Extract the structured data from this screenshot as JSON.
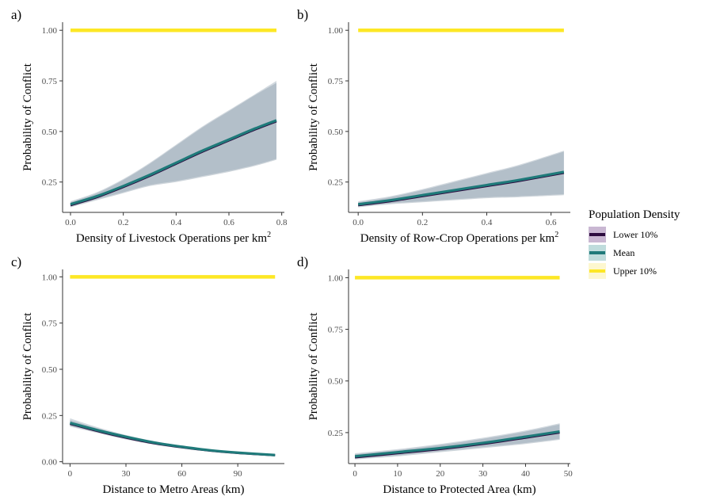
{
  "chart_data": [
    {
      "panel": "a)",
      "type": "line",
      "xlabel": "Density of Livestock Operations per km",
      "xlabel_sup": "2",
      "ylabel": "Probability of Conflict",
      "xlim": [
        -0.03,
        0.81
      ],
      "ylim": [
        0.1,
        1.04
      ],
      "xticks": [
        0,
        0.2,
        0.4,
        0.6,
        0.8
      ],
      "xtick_labels": [
        "0.0",
        "0.2",
        "0.4",
        "0.6",
        "0.8"
      ],
      "yticks": [
        0.25,
        0.5,
        0.75,
        1.0
      ],
      "ytick_labels": [
        "0.25",
        "0.50",
        "0.75",
        "1.00"
      ],
      "x": [
        0.0,
        0.1,
        0.2,
        0.3,
        0.4,
        0.5,
        0.6,
        0.7,
        0.78
      ],
      "series": [
        {
          "name": "Lower 10%",
          "values": [
            0.135,
            0.175,
            0.225,
            0.28,
            0.34,
            0.4,
            0.455,
            0.51,
            0.55
          ],
          "lower": [
            0.125,
            0.16,
            0.195,
            0.23,
            0.25,
            0.275,
            0.3,
            0.33,
            0.36
          ],
          "upper": [
            0.15,
            0.195,
            0.26,
            0.34,
            0.43,
            0.52,
            0.6,
            0.68,
            0.74
          ]
        },
        {
          "name": "Mean",
          "values": [
            0.14,
            0.18,
            0.23,
            0.285,
            0.345,
            0.405,
            0.46,
            0.515,
            0.555
          ],
          "lower": [
            0.13,
            0.165,
            0.2,
            0.235,
            0.255,
            0.28,
            0.305,
            0.335,
            0.365
          ],
          "upper": [
            0.155,
            0.2,
            0.265,
            0.345,
            0.435,
            0.525,
            0.605,
            0.685,
            0.75
          ]
        },
        {
          "name": "Upper 10%",
          "values": [
            1.0,
            1.0,
            1.0,
            1.0,
            1.0,
            1.0,
            1.0,
            1.0,
            1.0
          ],
          "lower": [
            0.999,
            0.999,
            0.999,
            0.999,
            0.999,
            0.999,
            0.999,
            0.999,
            0.999
          ],
          "upper": [
            1.0,
            1.0,
            1.0,
            1.0,
            1.0,
            1.0,
            1.0,
            1.0,
            1.0
          ]
        }
      ]
    },
    {
      "panel": "b)",
      "type": "line",
      "xlabel": "Density of Row-Crop Operations per km",
      "xlabel_sup": "2",
      "ylabel": "Probability of Conflict",
      "xlim": [
        -0.03,
        0.66
      ],
      "ylim": [
        0.1,
        1.04
      ],
      "xticks": [
        0,
        0.2,
        0.4,
        0.6
      ],
      "xtick_labels": [
        "0.0",
        "0.2",
        "0.4",
        "0.6"
      ],
      "yticks": [
        0.25,
        0.5,
        0.75,
        1.0
      ],
      "ytick_labels": [
        "0.25",
        "0.50",
        "0.75",
        "1.00"
      ],
      "x": [
        0.0,
        0.1,
        0.2,
        0.3,
        0.4,
        0.5,
        0.64
      ],
      "series": [
        {
          "name": "Lower 10%",
          "values": [
            0.135,
            0.155,
            0.18,
            0.205,
            0.23,
            0.255,
            0.295
          ],
          "lower": [
            0.125,
            0.14,
            0.15,
            0.16,
            0.17,
            0.175,
            0.185
          ],
          "upper": [
            0.15,
            0.175,
            0.21,
            0.25,
            0.29,
            0.33,
            0.4
          ]
        },
        {
          "name": "Mean",
          "values": [
            0.14,
            0.16,
            0.185,
            0.21,
            0.235,
            0.26,
            0.3
          ],
          "lower": [
            0.13,
            0.145,
            0.155,
            0.165,
            0.175,
            0.18,
            0.19
          ],
          "upper": [
            0.155,
            0.18,
            0.215,
            0.255,
            0.295,
            0.335,
            0.405
          ]
        },
        {
          "name": "Upper 10%",
          "values": [
            1.0,
            1.0,
            1.0,
            1.0,
            1.0,
            1.0,
            1.0
          ],
          "lower": [
            0.999,
            0.999,
            0.999,
            0.999,
            0.999,
            0.999,
            0.999
          ],
          "upper": [
            1.0,
            1.0,
            1.0,
            1.0,
            1.0,
            1.0,
            1.0
          ]
        }
      ]
    },
    {
      "panel": "c)",
      "type": "line",
      "xlabel": "Distance to Metro Areas (km)",
      "ylabel": "Probability of Conflict",
      "xlim": [
        -4,
        115
      ],
      "ylim": [
        -0.01,
        1.04
      ],
      "xticks": [
        0,
        30,
        60,
        90
      ],
      "xtick_labels": [
        "0",
        "30",
        "60",
        "90"
      ],
      "yticks": [
        0,
        0.25,
        0.5,
        0.75,
        1.0
      ],
      "ytick_labels": [
        "0.00",
        "0.25",
        "0.50",
        "0.75",
        "1.00"
      ],
      "x": [
        0,
        15,
        30,
        45,
        60,
        75,
        90,
        110
      ],
      "series": [
        {
          "name": "Lower 10%",
          "values": [
            0.205,
            0.165,
            0.13,
            0.1,
            0.078,
            0.06,
            0.047,
            0.035
          ],
          "lower": [
            0.19,
            0.155,
            0.12,
            0.093,
            0.072,
            0.055,
            0.043,
            0.031
          ],
          "upper": [
            0.225,
            0.18,
            0.14,
            0.108,
            0.084,
            0.065,
            0.051,
            0.039
          ]
        },
        {
          "name": "Mean",
          "values": [
            0.21,
            0.17,
            0.135,
            0.104,
            0.081,
            0.062,
            0.049,
            0.036
          ],
          "lower": [
            0.195,
            0.158,
            0.124,
            0.096,
            0.074,
            0.057,
            0.045,
            0.032
          ],
          "upper": [
            0.235,
            0.186,
            0.145,
            0.112,
            0.087,
            0.067,
            0.053,
            0.04
          ]
        },
        {
          "name": "Upper 10%",
          "values": [
            1.0,
            1.0,
            1.0,
            1.0,
            1.0,
            1.0,
            1.0,
            1.0
          ],
          "lower": [
            0.999,
            0.999,
            0.999,
            0.999,
            0.999,
            0.999,
            0.999,
            0.999
          ],
          "upper": [
            1.0,
            1.0,
            1.0,
            1.0,
            1.0,
            1.0,
            1.0,
            1.0
          ]
        }
      ]
    },
    {
      "panel": "d)",
      "type": "line",
      "xlabel": "Distance to Protected Area (km)",
      "ylabel": "Probability of Conflict",
      "xlim": [
        -1.5,
        50.5
      ],
      "ylim": [
        0.1,
        1.04
      ],
      "xticks": [
        0,
        10,
        20,
        30,
        40,
        50
      ],
      "xtick_labels": [
        "0",
        "10",
        "20",
        "30",
        "40",
        "50"
      ],
      "yticks": [
        0.25,
        0.5,
        0.75,
        1.0
      ],
      "ytick_labels": [
        "0.25",
        "0.50",
        "0.75",
        "1.00"
      ],
      "x": [
        0,
        10,
        20,
        30,
        40,
        48
      ],
      "series": [
        {
          "name": "Lower 10%",
          "values": [
            0.13,
            0.15,
            0.17,
            0.195,
            0.225,
            0.25
          ],
          "lower": [
            0.12,
            0.135,
            0.155,
            0.175,
            0.195,
            0.215
          ],
          "upper": [
            0.145,
            0.165,
            0.19,
            0.22,
            0.255,
            0.29
          ]
        },
        {
          "name": "Mean",
          "values": [
            0.135,
            0.155,
            0.175,
            0.2,
            0.23,
            0.255
          ],
          "lower": [
            0.125,
            0.14,
            0.16,
            0.18,
            0.2,
            0.22
          ],
          "upper": [
            0.15,
            0.17,
            0.195,
            0.225,
            0.26,
            0.295
          ]
        },
        {
          "name": "Upper 10%",
          "values": [
            1.0,
            1.0,
            1.0,
            1.0,
            1.0,
            1.0
          ],
          "lower": [
            0.999,
            0.999,
            0.999,
            0.999,
            0.999,
            0.999
          ],
          "upper": [
            1.0,
            1.0,
            1.0,
            1.0,
            1.0,
            1.0
          ]
        }
      ]
    }
  ],
  "legend": {
    "title": "Population Density",
    "placement": "right",
    "items": [
      {
        "label": "Lower 10%",
        "color": "#2d0b3f",
        "fill": "#c9b7d2"
      },
      {
        "label": "Mean",
        "color": "#1f7a7a",
        "fill": "#bfdcdc"
      },
      {
        "label": "Upper 10%",
        "color": "#fde725",
        "fill": "#fdf7cf"
      }
    ]
  },
  "colors": {
    "lower_line": "#2d0b3f",
    "mean_line": "#1f7a7a",
    "upper_line": "#fde725",
    "band": "#8a9aaa"
  }
}
